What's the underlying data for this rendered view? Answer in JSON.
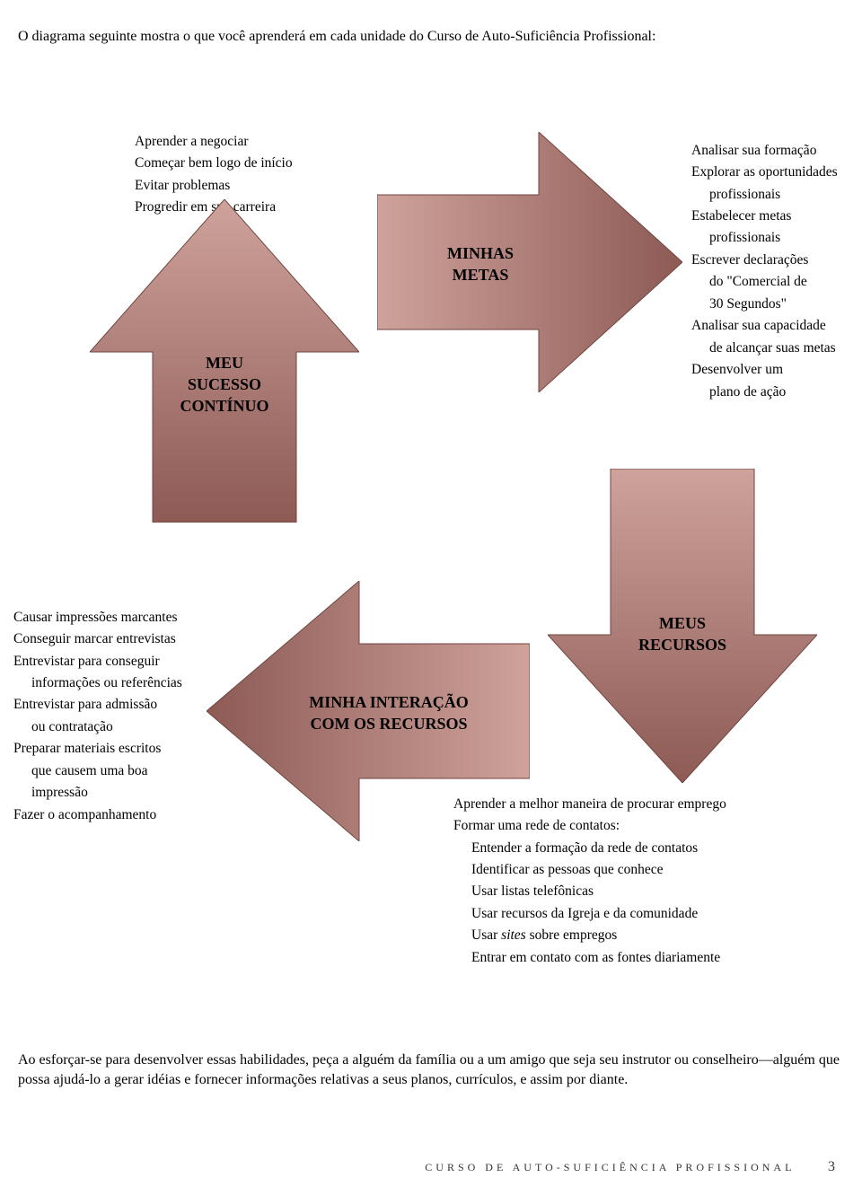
{
  "intro": "O diagrama seguinte mostra o que você aprenderá em cada unidade do Curso de Auto-Suficiência Profissional:",
  "topLeft": {
    "items": [
      "Aprender a negociar",
      "Começar bem logo de início",
      "Evitar problemas",
      "Progredir em sua carreira"
    ]
  },
  "upArrow": {
    "line1": "MEU",
    "line2": "SUCESSO",
    "line3": "CONTÍNUO"
  },
  "rightArrow": {
    "line1": "MINHAS",
    "line2": "METAS"
  },
  "topRight": {
    "items": [
      {
        "t": "Analisar sua formação",
        "indent": false
      },
      {
        "t": "Explorar as oportunidades",
        "indent": false
      },
      {
        "t": "profissionais",
        "indent": true
      },
      {
        "t": "Estabelecer metas",
        "indent": false
      },
      {
        "t": "profissionais",
        "indent": true
      },
      {
        "t": "Escrever declarações",
        "indent": false
      },
      {
        "t": "do \"Comercial de",
        "indent": true
      },
      {
        "t": "30 Segundos\"",
        "indent": true
      },
      {
        "t": "Analisar sua capacidade",
        "indent": false
      },
      {
        "t": "de alcançar suas metas",
        "indent": true
      },
      {
        "t": "Desenvolver um",
        "indent": false
      },
      {
        "t": "plano de ação",
        "indent": true
      }
    ]
  },
  "bottomLeft": {
    "items": [
      {
        "t": "Causar impressões marcantes",
        "indent": false
      },
      {
        "t": "Conseguir marcar entrevistas",
        "indent": false
      },
      {
        "t": "Entrevistar para conseguir",
        "indent": false
      },
      {
        "t": "informações ou referências",
        "indent": true
      },
      {
        "t": "Entrevistar para admissão",
        "indent": false
      },
      {
        "t": "ou contratação",
        "indent": true
      },
      {
        "t": "Preparar materiais escritos",
        "indent": false
      },
      {
        "t": "que causem uma boa",
        "indent": true
      },
      {
        "t": "impressão",
        "indent": true
      },
      {
        "t": "Fazer o acompanhamento",
        "indent": false
      }
    ]
  },
  "leftArrow": {
    "line1": "MINHA INTERAÇÃO",
    "line2": "COM OS RECURSOS"
  },
  "downArrow": {
    "line1": "MEUS",
    "line2": "RECURSOS"
  },
  "bottomRight": {
    "items": [
      {
        "t": "Aprender a melhor maneira de procurar emprego",
        "indent": false,
        "italic": false
      },
      {
        "t": "Formar uma rede de contatos:",
        "indent": false,
        "italic": false
      },
      {
        "t": "Entender a formação da rede de contatos",
        "indent": true,
        "italic": false
      },
      {
        "t": "Identificar as pessoas que conhece",
        "indent": true,
        "italic": false
      },
      {
        "t": "Usar listas telefônicas",
        "indent": true,
        "italic": false
      },
      {
        "t": "Usar recursos da Igreja e da comunidade",
        "indent": true,
        "italic": false
      },
      {
        "t": "Usar <i>sites</i> sobre empregos",
        "indent": true,
        "italic": false,
        "html": true
      },
      {
        "t": "Entrar em contato com as fontes diariamente",
        "indent": true,
        "italic": false
      }
    ]
  },
  "closing": "Ao esforçar-se para desenvolver essas habilidades, peça a alguém da família ou a um amigo que seja seu instrutor ou conselheiro—alguém que possa ajudá-lo a gerar idéias e fornecer informações relativas a seus planos, currículos, e assim por diante.",
  "footer": {
    "title": "CURSO DE AUTO-SUFICIÊNCIA PROFISSIONAL",
    "page": "3"
  },
  "style": {
    "arrowGradientStart": "#c89a94",
    "arrowGradientEnd": "#8d5a54",
    "arrowStroke": "#6f4640",
    "background": "#ffffff",
    "textColor": "#000000",
    "font": "Times New Roman"
  }
}
